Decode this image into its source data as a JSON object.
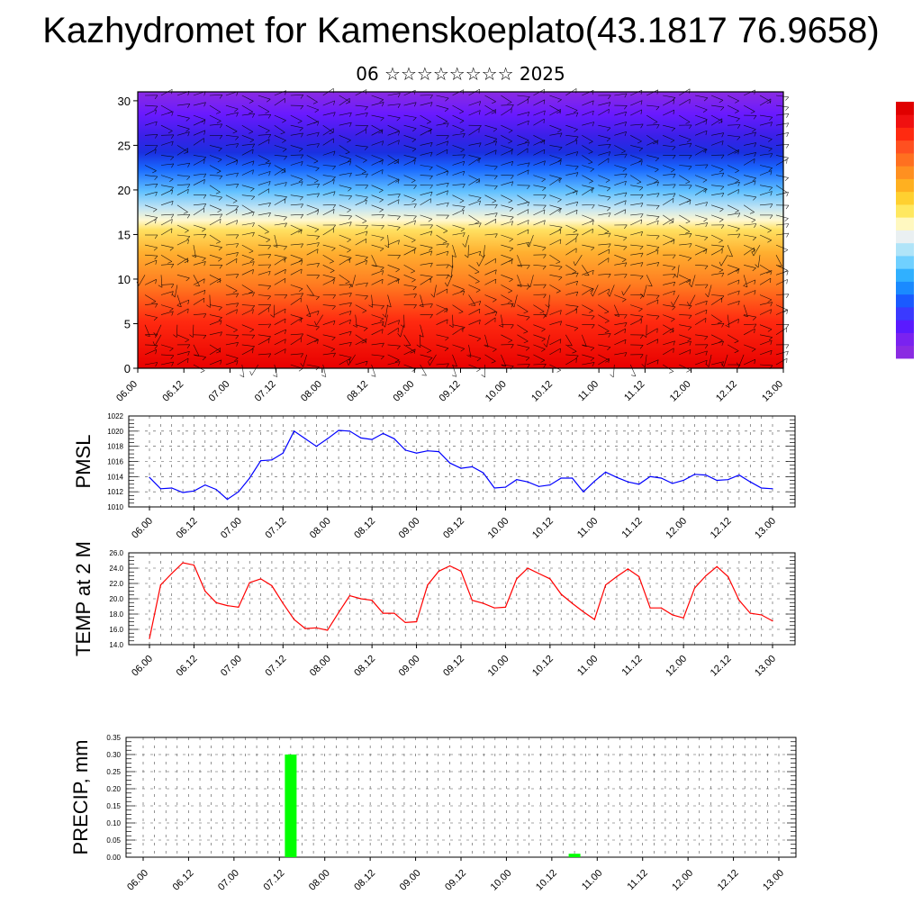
{
  "title": "Kazhydromet for Kamenskoeplato(43.1817 76.9658)",
  "subtitle": "06 ☆☆☆☆☆☆☆☆ 2025",
  "colors": {
    "pmsl_line": "#0000ff",
    "temp_line": "#ff0000",
    "precip_bar": "#00ff00",
    "grid": "#000000"
  },
  "colorbar": [
    "#8a2be2",
    "#7a22f0",
    "#5a1aff",
    "#3a3aff",
    "#1a5aff",
    "#1a8aff",
    "#30b0ff",
    "#70d0ff",
    "#b0e4f8",
    "#eaf0f2",
    "#fff8c0",
    "#ffe860",
    "#ffd030",
    "#ffb020",
    "#ff9020",
    "#ff7020",
    "#ff5020",
    "#ff2a10",
    "#f01010",
    "#e00000"
  ],
  "chart_data": [
    {
      "type": "heatmap",
      "title": "",
      "xlabel": "",
      "ylabel": "",
      "x_ticks": [
        "06.00",
        "06.12",
        "07.00",
        "07.12",
        "08.00",
        "08.12",
        "09.00",
        "09.12",
        "10.00",
        "10.12",
        "11.00",
        "11.12",
        "12.00",
        "12.12",
        "13.00"
      ],
      "y_ticks": [
        "0",
        "5",
        "10",
        "15",
        "20",
        "25",
        "30"
      ],
      "ylim": [
        0,
        31
      ],
      "note": "vertical profile shaded with wind barbs overlay"
    },
    {
      "type": "line",
      "ylabel": "PMSL",
      "ylim": [
        1010,
        1022
      ],
      "y_ticks": [
        "1010",
        "1012",
        "1014",
        "1016",
        "1018",
        "1020",
        "1022"
      ],
      "x_ticks": [
        "06.00",
        "06.12",
        "07.00",
        "07.12",
        "08.00",
        "08.12",
        "09.00",
        "09.12",
        "10.00",
        "10.12",
        "11.00",
        "11.12",
        "12.00",
        "12.12",
        "13.00"
      ],
      "x_step_hours": 3,
      "grid": true,
      "series": [
        {
          "values": [
            1013.9,
            1012.4,
            1012.5,
            1011.9,
            1012.1,
            1012.9,
            1012.3,
            1011.0,
            1012.0,
            1013.8,
            1016.1,
            1016.2,
            1017.1,
            1020.0,
            1019.0,
            1018.0,
            1019.0,
            1020.1,
            1020.0,
            1019.1,
            1018.9,
            1019.7,
            1019.0,
            1017.5,
            1017.1,
            1017.4,
            1017.3,
            1015.8,
            1015.1,
            1015.3,
            1014.5,
            1012.5,
            1012.6,
            1013.6,
            1013.3,
            1012.7,
            1012.9,
            1013.8,
            1013.8,
            1012.0,
            1013.4,
            1014.6,
            1013.9,
            1013.3,
            1013.0,
            1014.0,
            1013.8,
            1013.1,
            1013.5,
            1014.3,
            1014.2,
            1013.5,
            1013.6,
            1014.2,
            1013.3,
            1012.5,
            1012.4
          ]
        }
      ]
    },
    {
      "type": "line",
      "ylabel": "TEMP at 2 M",
      "ylim": [
        14.0,
        26.0
      ],
      "y_ticks": [
        "14.0",
        "16.0",
        "18.0",
        "20.0",
        "22.0",
        "24.0",
        "26.0"
      ],
      "x_ticks": [
        "06.00",
        "06.12",
        "07.00",
        "07.12",
        "08.00",
        "08.12",
        "09.00",
        "09.12",
        "10.00",
        "10.12",
        "11.00",
        "11.12",
        "12.00",
        "12.12",
        "13.00"
      ],
      "x_step_hours": 3,
      "grid": true,
      "series": [
        {
          "values": [
            14.8,
            21.8,
            23.3,
            24.7,
            24.4,
            21.0,
            19.5,
            19.1,
            18.9,
            22.1,
            22.6,
            21.7,
            19.4,
            17.3,
            16.1,
            16.2,
            15.9,
            18.2,
            20.4,
            20.0,
            19.8,
            18.1,
            18.1,
            16.9,
            17.0,
            21.8,
            23.6,
            24.3,
            23.6,
            19.8,
            19.4,
            18.8,
            18.9,
            22.6,
            24.0,
            23.3,
            22.6,
            20.6,
            19.4,
            18.3,
            17.3,
            21.8,
            22.9,
            23.9,
            22.9,
            18.8,
            18.8,
            17.9,
            17.5,
            21.4,
            23.0,
            24.2,
            22.9,
            19.8,
            18.1,
            17.9,
            17.1
          ]
        }
      ]
    },
    {
      "type": "bar",
      "ylabel": "PRECIP, mm",
      "ylim": [
        0.0,
        0.35
      ],
      "y_ticks": [
        "0.00",
        "0.05",
        "0.10",
        "0.15",
        "0.20",
        "0.25",
        "0.30",
        "0.35"
      ],
      "x_ticks": [
        "06.00",
        "06.12",
        "07.00",
        "07.12",
        "08.00",
        "08.12",
        "09.00",
        "09.12",
        "10.00",
        "10.12",
        "11.00",
        "11.12",
        "12.00",
        "12.12",
        "13.00"
      ],
      "x_step_hours": 3,
      "grid": true,
      "bars": [
        {
          "label": "07.15",
          "value": 0.3
        },
        {
          "label": "10.18",
          "value": 0.01
        }
      ]
    }
  ]
}
